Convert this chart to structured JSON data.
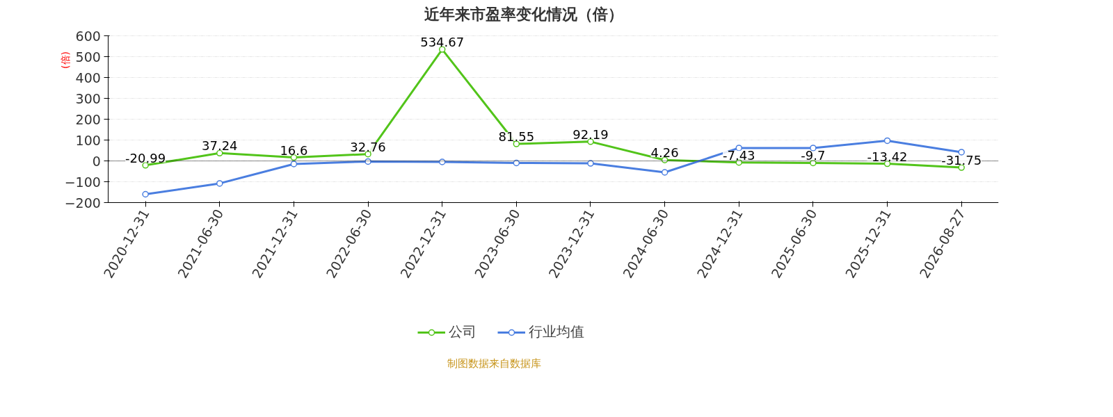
{
  "chart_data": {
    "type": "line",
    "title": "近年来市盈率变化情况（倍）",
    "ylabel": "(倍)",
    "categories": [
      "2020-12-31",
      "2021-06-30",
      "2021-12-31",
      "2022-06-30",
      "2022-12-31",
      "2023-06-30",
      "2023-12-31",
      "2024-06-30",
      "2024-12-31",
      "2025-06-30",
      "2025-12-31",
      "2026-08-27"
    ],
    "series": [
      {
        "name": "公司",
        "color": "#52c41a",
        "values": [
          -20.99,
          37.24,
          16.6,
          32.76,
          534.67,
          81.55,
          92.19,
          4.26,
          -7.43,
          -9.7,
          -13.42,
          -31.75
        ],
        "value_labels": [
          "-20.99",
          "37.24",
          "16.6",
          "32.76",
          "534.67",
          "81.55",
          "92.19",
          "4.26",
          "-7.43",
          "-9.7",
          "-13.42",
          "-31.75"
        ]
      },
      {
        "name": "行业均值",
        "color": "#4a7ee0",
        "values": [
          -160,
          -108,
          -15,
          -3,
          -5,
          -10,
          -12,
          -55,
          62,
          62,
          97,
          42
        ]
      }
    ],
    "ylim": [
      -200,
      600
    ],
    "yticks": [
      -200,
      -100,
      0,
      100,
      200,
      300,
      400,
      500,
      600
    ],
    "grid": "y",
    "legend": "bottom",
    "marker": "circle",
    "line_style": "solid",
    "annotations": [
      "制图数据来自数据库"
    ]
  }
}
